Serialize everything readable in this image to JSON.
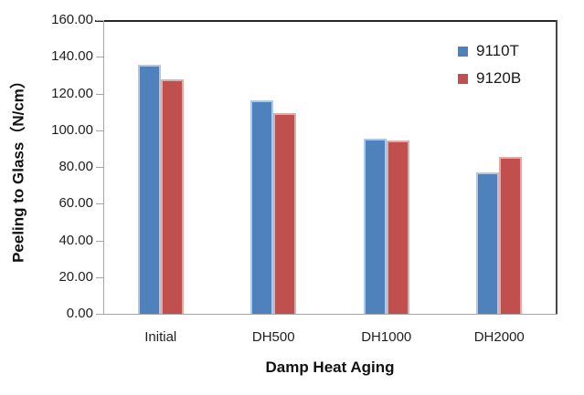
{
  "chart_data": {
    "type": "bar",
    "title": "",
    "categories": [
      "Initial",
      "DH500",
      "DH1000",
      "DH2000"
    ],
    "series": [
      {
        "name": "9110T",
        "color": "#4F81BD",
        "border_color": "#AFC8E5",
        "values": [
          136.7,
          116.8,
          96.0,
          77.5
        ]
      },
      {
        "name": "9120B",
        "color": "#C0504D",
        "border_color": "#DEACAA",
        "values": [
          128.6,
          109.8,
          94.8,
          85.9
        ]
      }
    ],
    "xlabel": "Damp Heat Aging",
    "ylabel": "Peeling to Glass（N/cm）",
    "ylim": [
      0,
      160
    ],
    "ytick_step": 20,
    "ytick_labels": [
      "160.00",
      "140.00",
      "120.00",
      "100.00",
      "80.00",
      "60.00",
      "40.00",
      "20.00",
      "0.00"
    ],
    "legend_position": "top-right",
    "grid": false,
    "axis_colors": {
      "plot_border": "#262626",
      "axis_line": "#a6a6a6"
    }
  }
}
